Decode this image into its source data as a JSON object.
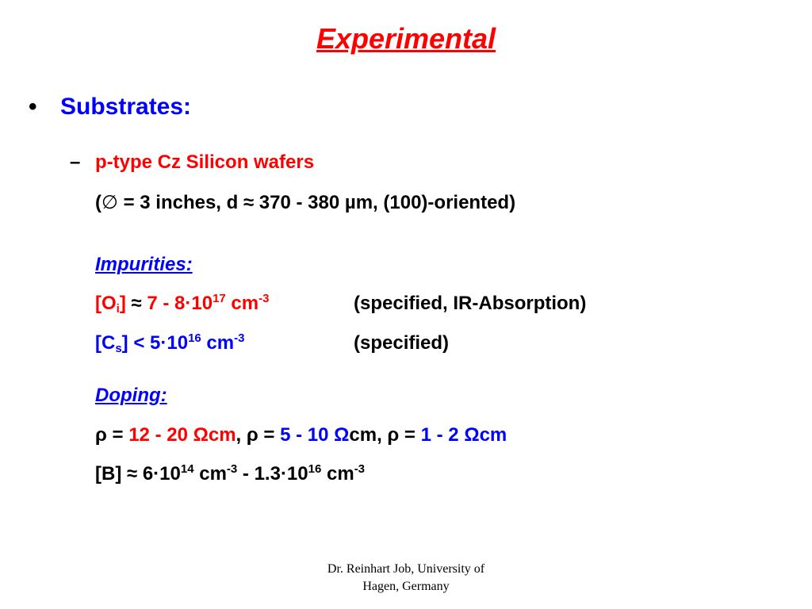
{
  "title": "Experimental",
  "bullet": {
    "marker": "•",
    "label": "Substrates:"
  },
  "sub": {
    "marker": "–",
    "heading": "p-type Cz Silicon wafers",
    "spec": {
      "open": "(",
      "diam": "∅",
      "rest": " = 3 inches, d ≈ 370 - 380 µm, (100)-oriented)"
    }
  },
  "impurities": {
    "label": "Impurities:",
    "oi": {
      "bracket_open": "[O",
      "subscript": "i",
      "bracket_close": "]",
      "approx": " ≈ ",
      "value": "7 - 8·10",
      "exp": "17",
      "unit": " cm",
      "unit_exp": "-3",
      "note": "(specified, IR-Absorption)"
    },
    "cs": {
      "bracket_open": "[C",
      "subscript": "s",
      "bracket_close": "]",
      "relation": " < 5·10",
      "exp": "16",
      "unit": " cm",
      "unit_exp": "-3",
      "note": "(specified)"
    }
  },
  "doping": {
    "label": "Doping:",
    "rho1": {
      "sym": "ρ = ",
      "val": "12 - 20 ",
      "omega": "Ω",
      "unit": "cm",
      "sep": ", "
    },
    "rho2": {
      "sym": "ρ = ",
      "val": "5 - 10 ",
      "omega": "Ω",
      "unit": "cm",
      "sep": ", "
    },
    "rho3": {
      "sym": "ρ = ",
      "val": "1 - 2 ",
      "omega": "Ω",
      "unit": "cm"
    },
    "boron": {
      "prefix": "[B] ≈ 6·10",
      "exp1": "14",
      "unit1": " cm",
      "unit1_exp": "-3",
      "mid": " - 1.3·10",
      "exp2": "16",
      "unit2": " cm",
      "unit2_exp": "-3"
    }
  },
  "footer": {
    "line1": "Dr. Reinhart Job, University of",
    "line2": "Hagen, Germany"
  },
  "colors": {
    "title": "#ff0000",
    "heading": "#0000ff",
    "highlight_red": "#ff0000",
    "highlight_blue": "#0000ff"
  }
}
